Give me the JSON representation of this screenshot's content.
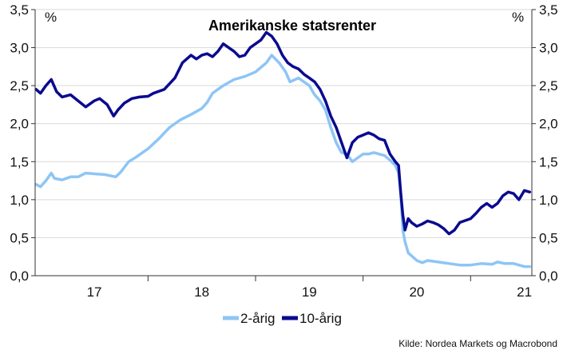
{
  "chart_data": {
    "type": "line",
    "title": "Amerikanske statsrenter",
    "left_unit": "%",
    "right_unit": "%",
    "ylim": [
      0.0,
      3.5
    ],
    "y_ticks": [
      "0,0",
      "0,5",
      "1,0",
      "1,5",
      "2,0",
      "2,5",
      "3,0",
      "3,5"
    ],
    "x_ticks": [
      "17",
      "18",
      "19",
      "20",
      "21"
    ],
    "x_tick_positions": [
      2017.0,
      2018.0,
      2019.0,
      2020.0,
      2021.0
    ],
    "xlim": [
      2016.45,
      2021.07
    ],
    "grid": true,
    "legend_position": "bottom-center",
    "source": "Kilde: Nordea Markets og Macrobond",
    "colors": {
      "two_year": "#8ec5f5",
      "ten_year": "#0a0a8f",
      "grid": "#d9d9d9",
      "axis": "#333333"
    },
    "series": [
      {
        "name": "2-årig",
        "color": "#8ec5f5",
        "points": [
          [
            2016.46,
            1.2
          ],
          [
            2016.5,
            1.17
          ],
          [
            2016.55,
            1.25
          ],
          [
            2016.6,
            1.35
          ],
          [
            2016.63,
            1.28
          ],
          [
            2016.7,
            1.26
          ],
          [
            2016.78,
            1.3
          ],
          [
            2016.85,
            1.3
          ],
          [
            2016.92,
            1.35
          ],
          [
            2017.0,
            1.34
          ],
          [
            2017.1,
            1.33
          ],
          [
            2017.2,
            1.3
          ],
          [
            2017.25,
            1.37
          ],
          [
            2017.32,
            1.5
          ],
          [
            2017.4,
            1.57
          ],
          [
            2017.5,
            1.67
          ],
          [
            2017.6,
            1.8
          ],
          [
            2017.7,
            1.95
          ],
          [
            2017.8,
            2.05
          ],
          [
            2017.9,
            2.12
          ],
          [
            2018.0,
            2.2
          ],
          [
            2018.05,
            2.28
          ],
          [
            2018.1,
            2.4
          ],
          [
            2018.2,
            2.5
          ],
          [
            2018.3,
            2.58
          ],
          [
            2018.4,
            2.62
          ],
          [
            2018.5,
            2.68
          ],
          [
            2018.6,
            2.8
          ],
          [
            2018.65,
            2.9
          ],
          [
            2018.72,
            2.8
          ],
          [
            2018.78,
            2.68
          ],
          [
            2018.82,
            2.55
          ],
          [
            2018.9,
            2.6
          ],
          [
            2018.95,
            2.55
          ],
          [
            2019.0,
            2.5
          ],
          [
            2019.05,
            2.38
          ],
          [
            2019.1,
            2.3
          ],
          [
            2019.15,
            2.18
          ],
          [
            2019.2,
            1.95
          ],
          [
            2019.25,
            1.75
          ],
          [
            2019.3,
            1.62
          ],
          [
            2019.35,
            1.6
          ],
          [
            2019.4,
            1.5
          ],
          [
            2019.45,
            1.55
          ],
          [
            2019.5,
            1.6
          ],
          [
            2019.55,
            1.6
          ],
          [
            2019.6,
            1.62
          ],
          [
            2019.7,
            1.58
          ],
          [
            2019.75,
            1.52
          ],
          [
            2019.8,
            1.45
          ],
          [
            2019.83,
            1.35
          ],
          [
            2019.85,
            1.1
          ],
          [
            2019.87,
            0.6
          ],
          [
            2019.89,
            0.45
          ],
          [
            2019.92,
            0.3
          ],
          [
            2019.96,
            0.25
          ],
          [
            2020.0,
            0.2
          ],
          [
            2020.05,
            0.17
          ],
          [
            2020.1,
            0.2
          ],
          [
            2020.2,
            0.18
          ],
          [
            2020.3,
            0.16
          ],
          [
            2020.4,
            0.14
          ],
          [
            2020.5,
            0.14
          ],
          [
            2020.6,
            0.16
          ],
          [
            2020.7,
            0.15
          ],
          [
            2020.75,
            0.18
          ],
          [
            2020.82,
            0.16
          ],
          [
            2020.9,
            0.16
          ],
          [
            2020.95,
            0.14
          ],
          [
            2021.0,
            0.12
          ],
          [
            2021.05,
            0.12
          ]
        ]
      },
      {
        "name": "10-årig",
        "color": "#0a0a8f",
        "points": [
          [
            2016.46,
            2.45
          ],
          [
            2016.5,
            2.4
          ],
          [
            2016.55,
            2.5
          ],
          [
            2016.6,
            2.58
          ],
          [
            2016.65,
            2.42
          ],
          [
            2016.7,
            2.35
          ],
          [
            2016.78,
            2.38
          ],
          [
            2016.85,
            2.3
          ],
          [
            2016.92,
            2.22
          ],
          [
            2017.0,
            2.3
          ],
          [
            2017.05,
            2.33
          ],
          [
            2017.12,
            2.25
          ],
          [
            2017.18,
            2.1
          ],
          [
            2017.22,
            2.18
          ],
          [
            2017.28,
            2.27
          ],
          [
            2017.35,
            2.33
          ],
          [
            2017.42,
            2.35
          ],
          [
            2017.5,
            2.36
          ],
          [
            2017.55,
            2.4
          ],
          [
            2017.65,
            2.45
          ],
          [
            2017.75,
            2.6
          ],
          [
            2017.82,
            2.8
          ],
          [
            2017.9,
            2.9
          ],
          [
            2017.95,
            2.85
          ],
          [
            2018.0,
            2.9
          ],
          [
            2018.05,
            2.92
          ],
          [
            2018.1,
            2.88
          ],
          [
            2018.15,
            2.95
          ],
          [
            2018.2,
            3.05
          ],
          [
            2018.25,
            3.0
          ],
          [
            2018.3,
            2.95
          ],
          [
            2018.35,
            2.88
          ],
          [
            2018.4,
            2.9
          ],
          [
            2018.45,
            3.0
          ],
          [
            2018.5,
            3.05
          ],
          [
            2018.55,
            3.1
          ],
          [
            2018.6,
            3.2
          ],
          [
            2018.65,
            3.15
          ],
          [
            2018.7,
            3.05
          ],
          [
            2018.75,
            2.9
          ],
          [
            2018.8,
            2.8
          ],
          [
            2018.85,
            2.75
          ],
          [
            2018.9,
            2.72
          ],
          [
            2018.95,
            2.65
          ],
          [
            2019.0,
            2.6
          ],
          [
            2019.05,
            2.55
          ],
          [
            2019.1,
            2.45
          ],
          [
            2019.15,
            2.3
          ],
          [
            2019.2,
            2.1
          ],
          [
            2019.25,
            1.95
          ],
          [
            2019.3,
            1.75
          ],
          [
            2019.35,
            1.55
          ],
          [
            2019.4,
            1.75
          ],
          [
            2019.45,
            1.82
          ],
          [
            2019.5,
            1.85
          ],
          [
            2019.55,
            1.88
          ],
          [
            2019.6,
            1.85
          ],
          [
            2019.65,
            1.8
          ],
          [
            2019.7,
            1.78
          ],
          [
            2019.75,
            1.6
          ],
          [
            2019.8,
            1.5
          ],
          [
            2019.83,
            1.45
          ],
          [
            2019.85,
            1.1
          ],
          [
            2019.87,
            0.8
          ],
          [
            2019.89,
            0.6
          ],
          [
            2019.92,
            0.75
          ],
          [
            2019.95,
            0.7
          ],
          [
            2020.0,
            0.65
          ],
          [
            2020.05,
            0.68
          ],
          [
            2020.1,
            0.72
          ],
          [
            2020.15,
            0.7
          ],
          [
            2020.2,
            0.67
          ],
          [
            2020.25,
            0.62
          ],
          [
            2020.3,
            0.55
          ],
          [
            2020.35,
            0.6
          ],
          [
            2020.4,
            0.7
          ],
          [
            2020.5,
            0.75
          ],
          [
            2020.55,
            0.82
          ],
          [
            2020.6,
            0.9
          ],
          [
            2020.65,
            0.95
          ],
          [
            2020.7,
            0.9
          ],
          [
            2020.75,
            0.95
          ],
          [
            2020.8,
            1.05
          ],
          [
            2020.85,
            1.1
          ],
          [
            2020.9,
            1.08
          ],
          [
            2020.95,
            1.0
          ],
          [
            2021.0,
            1.12
          ],
          [
            2021.05,
            1.1
          ]
        ]
      }
    ]
  }
}
